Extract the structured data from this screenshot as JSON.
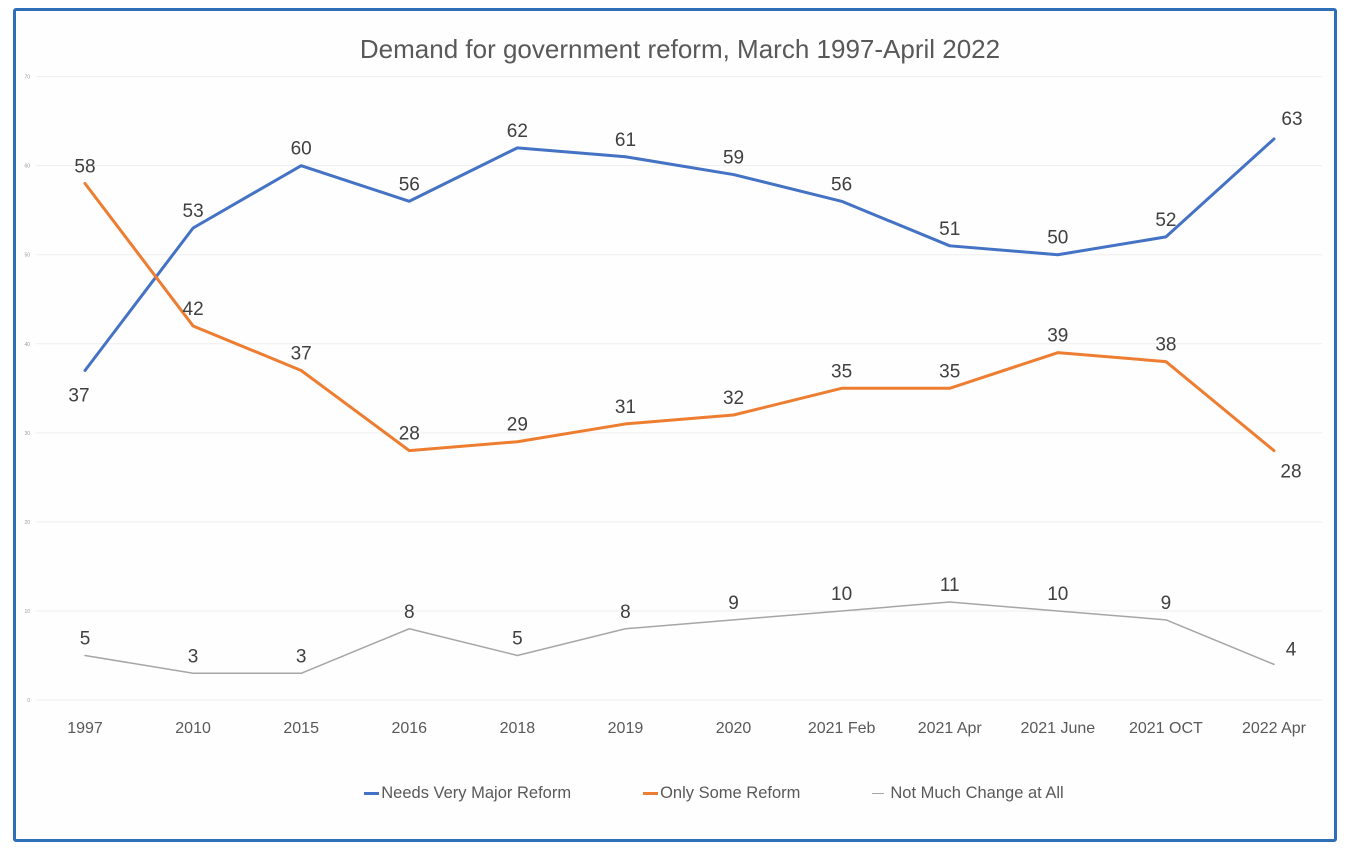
{
  "frame": {
    "border_color": "#2E6FB7"
  },
  "chart_data": {
    "type": "line",
    "title": "Demand for government reform, March 1997-April 2022",
    "categories": [
      "1997",
      "2010",
      "2015",
      "2016",
      "2018",
      "2019",
      "2020",
      "2021 Feb",
      "2021 Apr",
      "2021 June",
      "2021 OCT",
      "2022 Apr"
    ],
    "series": [
      {
        "name": "Needs Very Major Reform",
        "color": "#4472C4",
        "stroke_width": 3,
        "values": [
          37,
          53,
          60,
          56,
          62,
          61,
          59,
          56,
          51,
          50,
          52,
          63
        ]
      },
      {
        "name": "Only Some Reform",
        "color": "#ED7D31",
        "stroke_width": 3,
        "values": [
          58,
          42,
          37,
          28,
          29,
          31,
          32,
          35,
          35,
          39,
          38,
          28
        ]
      },
      {
        "name": "Not Much Change at All",
        "color": "#A6A6A6",
        "stroke_width": 1.5,
        "values": [
          5,
          3,
          3,
          8,
          5,
          8,
          9,
          10,
          11,
          10,
          9,
          4
        ]
      }
    ],
    "y_axis": {
      "min": 0,
      "max": 70,
      "step": 10,
      "tick_labels": [
        "0",
        "10",
        "20",
        "30",
        "40",
        "50",
        "60",
        "70"
      ]
    },
    "grid": true,
    "gridline_color": "#eeeeee",
    "data_labels": true,
    "data_label_color": "#404040",
    "axis_label_color": "#595959",
    "title_color": "#595959",
    "legend_position": "bottom"
  }
}
